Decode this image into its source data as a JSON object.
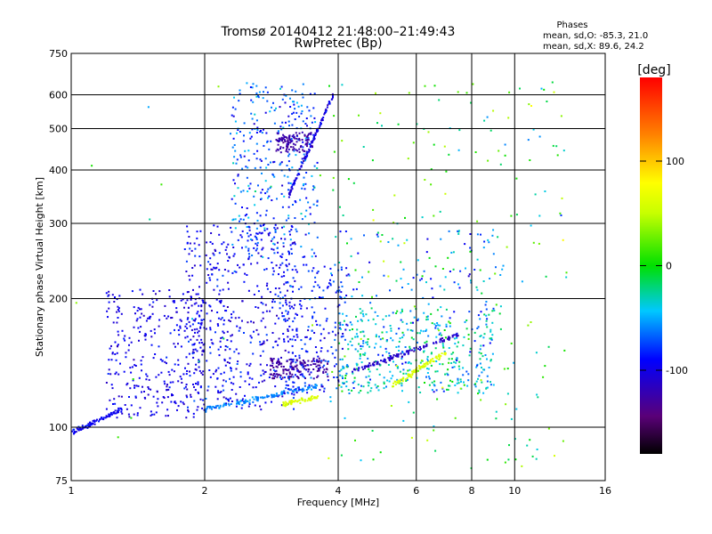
{
  "chart_data": {
    "type": "scatter",
    "title": "Tromsø 20140412 21:48:00–21:49:43",
    "subtitle": "RwPretec (Bp)",
    "xlabel": "Frequency [MHz]",
    "ylabel": "Stationary phase Virtual Height [km]",
    "x_scale": "log",
    "y_scale": "log",
    "xlim": [
      1,
      16
    ],
    "ylim": [
      75,
      750
    ],
    "x_ticks": [
      "1",
      "2",
      "4",
      "6",
      "8",
      "10",
      "16"
    ],
    "x_tick_values": [
      1,
      2,
      4,
      6,
      8,
      10,
      16
    ],
    "y_ticks": [
      "75",
      "100",
      "200",
      "300",
      "400",
      "500",
      "600",
      "750"
    ],
    "y_tick_values": [
      75,
      100,
      200,
      300,
      400,
      500,
      600,
      750
    ],
    "grid": true,
    "legend": {
      "title": "Phases",
      "lines": [
        "mean, sd,O: -85.3, 21.0",
        "mean, sd,X: 89.6, 24.2"
      ],
      "placement": "top-right"
    },
    "colorbar": {
      "label": "[deg]",
      "ticks": [
        "100",
        "0",
        "-100"
      ],
      "tick_values": [
        100,
        0,
        -100
      ],
      "range": [
        -180,
        180
      ],
      "colormap": "rainbow (black-purple-blue-cyan-green-yellow-red)"
    },
    "clusters": [
      {
        "fmin": 1.0,
        "fmax": 1.3,
        "hmin": 97,
        "hmax": 110,
        "phase": -95,
        "spread": 20,
        "n": 90,
        "shape": "trace"
      },
      {
        "fmin": 1.2,
        "fmax": 2.0,
        "hmin": 105,
        "hmax": 210,
        "phase": -100,
        "spread": 25,
        "n": 320
      },
      {
        "fmin": 1.8,
        "fmax": 3.2,
        "hmin": 110,
        "hmax": 300,
        "phase": -95,
        "spread": 35,
        "n": 520
      },
      {
        "fmin": 2.0,
        "fmax": 3.6,
        "hmin": 110,
        "hmax": 125,
        "phase": -60,
        "spread": 15,
        "n": 120,
        "shape": "trace"
      },
      {
        "fmin": 2.3,
        "fmax": 3.6,
        "hmin": 250,
        "hmax": 640,
        "phase": -70,
        "spread": 60,
        "n": 340
      },
      {
        "fmin": 2.9,
        "fmax": 3.5,
        "hmin": 440,
        "hmax": 490,
        "phase": -125,
        "spread": 15,
        "n": 110
      },
      {
        "fmin": 3.1,
        "fmax": 3.9,
        "hmin": 350,
        "hmax": 600,
        "phase": -100,
        "spread": 30,
        "n": 110,
        "shape": "trace"
      },
      {
        "fmin": 2.8,
        "fmax": 3.8,
        "hmin": 130,
        "hmax": 145,
        "phase": -130,
        "spread": 15,
        "n": 140
      },
      {
        "fmin": 3.0,
        "fmax": 3.6,
        "hmin": 113,
        "hmax": 118,
        "phase": 60,
        "spread": 15,
        "n": 60,
        "shape": "trace"
      },
      {
        "fmin": 3.0,
        "fmax": 4.2,
        "hmin": 120,
        "hmax": 240,
        "phase": -85,
        "spread": 40,
        "n": 220
      },
      {
        "fmin": 4.0,
        "fmax": 9.0,
        "hmin": 120,
        "hmax": 190,
        "phase": -40,
        "spread": 70,
        "n": 430
      },
      {
        "fmin": 4.3,
        "fmax": 7.5,
        "hmin": 135,
        "hmax": 165,
        "phase": -110,
        "spread": 20,
        "n": 120,
        "shape": "trace"
      },
      {
        "fmin": 5.3,
        "fmax": 7.0,
        "hmin": 125,
        "hmax": 150,
        "phase": 60,
        "spread": 15,
        "n": 90,
        "shape": "trace"
      },
      {
        "fmin": 4.0,
        "fmax": 9.5,
        "hmin": 190,
        "hmax": 290,
        "phase": -60,
        "spread": 70,
        "n": 90
      },
      {
        "fmin": 3.8,
        "fmax": 13.0,
        "hmin": 80,
        "hmax": 650,
        "phase": 0,
        "spread": 100,
        "n": 200
      },
      {
        "fmin": 1.0,
        "fmax": 16.0,
        "hmin": 90,
        "hmax": 700,
        "phase": 0,
        "spread": 100,
        "n": 40
      }
    ]
  }
}
